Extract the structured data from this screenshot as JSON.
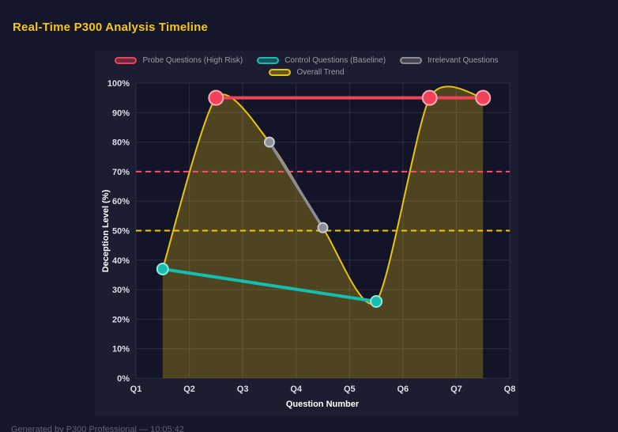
{
  "header": {
    "title": "Real-Time P300 Analysis Timeline"
  },
  "footer": {
    "text": "Generated by P300 Professional — 10:05:42"
  },
  "chart_data": {
    "type": "line",
    "title": "Real-Time P300 Analysis Timeline",
    "xlabel": "Question Number",
    "ylabel": "Deception Level (%)",
    "xlim": [
      1,
      8
    ],
    "ylim": [
      0,
      100
    ],
    "x_ticks": [
      "Q1",
      "Q2",
      "Q3",
      "Q4",
      "Q5",
      "Q6",
      "Q7",
      "Q8"
    ],
    "x_tick_positions": [
      1,
      2,
      3,
      4,
      5,
      6,
      7,
      8
    ],
    "y_tick_step": 10,
    "y_tick_suffix": "%",
    "grid": true,
    "legend_position": "top",
    "colors": {
      "page_bg": "#16162a",
      "panel_bg": "#1d1d31",
      "plot_bg": "#141428",
      "grid": "#2c2c42",
      "tick_text": "#dcdce6",
      "axis_title_text": "#ffffff",
      "legend_text": "#9b9bab",
      "title_text": "#f2c811",
      "footer_text": "#60607a"
    },
    "series": [
      {
        "name": "Probe Questions (High Risk)",
        "color": "#f0435a",
        "point_border": "#f9aab4",
        "point_radius": 9,
        "line_width": 4,
        "x": [
          2.5,
          6.5,
          7.5
        ],
        "y": [
          95,
          95,
          95
        ]
      },
      {
        "name": "Control Questions (Baseline)",
        "color": "#16bdb1",
        "point_border": "#93e7e0",
        "point_radius": 7,
        "line_width": 4,
        "x": [
          1.5,
          5.5
        ],
        "y": [
          37,
          26
        ]
      },
      {
        "name": "Irrelevant Questions",
        "color": "#8d8d99",
        "point_border": "#c9c9d2",
        "point_radius": 6,
        "line_width": 3.5,
        "x": [
          3.5,
          4.5
        ],
        "y": [
          80,
          51
        ]
      },
      {
        "name": "Overall Trend",
        "color": "#e7c40e",
        "point_radius": 0,
        "line_width": 2,
        "smooth": true,
        "fill_alpha": 0.28,
        "x": [
          1.5,
          2.5,
          3.5,
          4.5,
          5.5,
          6.5,
          7.5
        ],
        "y": [
          37,
          95,
          80,
          51,
          26,
          95,
          95
        ]
      }
    ],
    "thresholds": [
      {
        "y": 70,
        "color": "#ff4d6d",
        "dash": "7 5",
        "width": 2
      },
      {
        "y": 50,
        "color": "#edc80f",
        "dash": "7 5",
        "width": 2
      }
    ]
  }
}
